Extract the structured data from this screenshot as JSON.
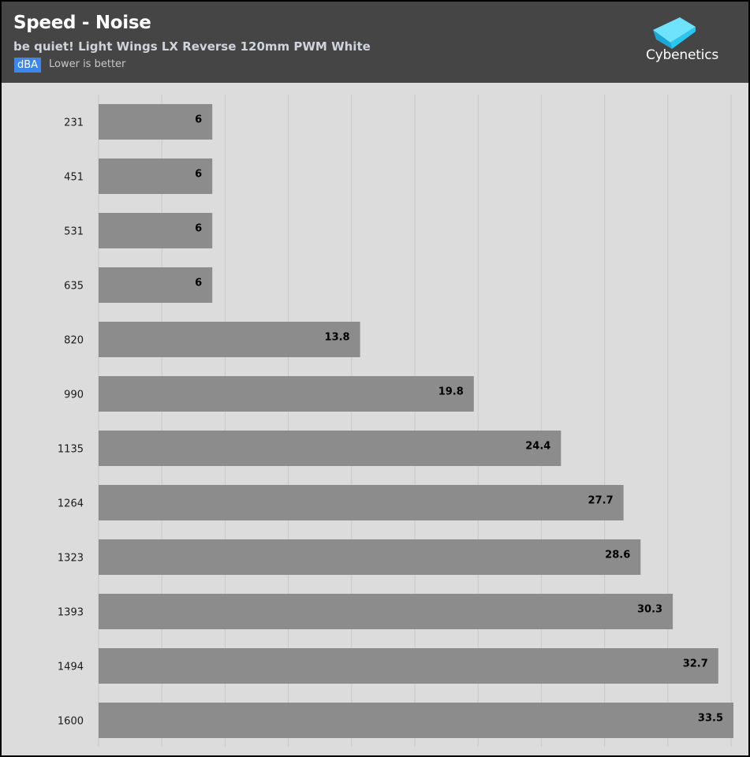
{
  "header": {
    "title": "Speed - Noise",
    "subtitle": "be quiet! Light Wings LX Reverse 120mm PWM White",
    "unit_badge": "dBA",
    "hint": "Lower is better",
    "logo_text": "Cybenetics",
    "logo_icon": "cybenetics-cube-icon"
  },
  "colors": {
    "header_bg": "#454545",
    "plot_bg": "#dcdcdc",
    "bar": "#8c8c8c",
    "badge": "#3d86ea",
    "logo_cube": "#29c7ef"
  },
  "chart_data": {
    "type": "bar",
    "orientation": "horizontal",
    "title": "Speed - Noise",
    "subtitle": "be quiet! Light Wings LX Reverse 120mm PWM White",
    "unit": "dBA",
    "categories": [
      "231",
      "451",
      "531",
      "635",
      "820",
      "990",
      "1135",
      "1264",
      "1323",
      "1393",
      "1494",
      "1600"
    ],
    "values": [
      6,
      6,
      6,
      6,
      13.8,
      19.8,
      24.4,
      27.7,
      28.6,
      30.3,
      32.7,
      33.5
    ],
    "value_labels": [
      "6",
      "6",
      "6",
      "6",
      "13.8",
      "19.8",
      "24.4",
      "27.7",
      "28.6",
      "30.3",
      "32.7",
      "33.5"
    ],
    "xlim": [
      0,
      33.5
    ],
    "grid": true
  }
}
